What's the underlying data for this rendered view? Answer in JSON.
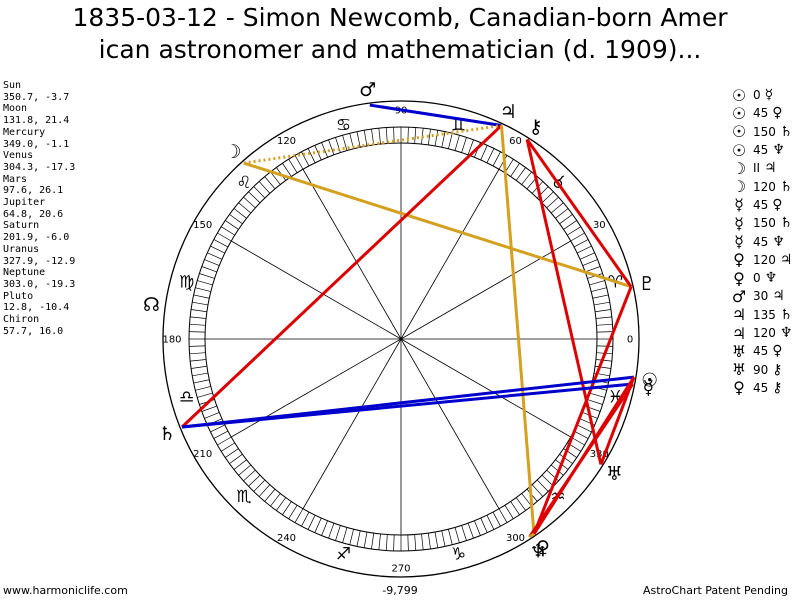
{
  "title": {
    "line1": "1835-03-12 - Simon Newcomb, Canadian-born Amer",
    "line2": "ican astronomer and mathematician (d. 1909)..."
  },
  "planet_list": [
    {
      "name": "Sun",
      "coords": "350.7, -3.7"
    },
    {
      "name": "Moon",
      "coords": "131.8, 21.4"
    },
    {
      "name": "Mercury",
      "coords": "349.0, -1.1"
    },
    {
      "name": "Venus",
      "coords": "304.3, -17.3"
    },
    {
      "name": "Mars",
      "coords": "97.6, 26.1"
    },
    {
      "name": "Jupiter",
      "coords": "64.8, 20.6"
    },
    {
      "name": "Saturn",
      "coords": "201.9, -6.0"
    },
    {
      "name": "Uranus",
      "coords": "327.9, -12.9"
    },
    {
      "name": "Neptune",
      "coords": "303.0, -19.3"
    },
    {
      "name": "Pluto",
      "coords": "12.8, -10.4"
    },
    {
      "name": "Chiron",
      "coords": "57.7, 16.0"
    }
  ],
  "aspects": [
    {
      "p1": "☉",
      "angle": "0",
      "p2": "☿"
    },
    {
      "p1": "☉",
      "angle": "45",
      "p2": "♀"
    },
    {
      "p1": "☉",
      "angle": "150",
      "p2": "♄"
    },
    {
      "p1": "☉",
      "angle": "45",
      "p2": "♆"
    },
    {
      "p1": "☽",
      "angle": "II",
      "p2": "♃"
    },
    {
      "p1": "☽",
      "angle": "120",
      "p2": "♄"
    },
    {
      "p1": "☿",
      "angle": "45",
      "p2": "♀"
    },
    {
      "p1": "☿",
      "angle": "150",
      "p2": "♄"
    },
    {
      "p1": "☿",
      "angle": "45",
      "p2": "♆"
    },
    {
      "p1": "♀",
      "angle": "120",
      "p2": "♃"
    },
    {
      "p1": "♀",
      "angle": "0",
      "p2": "♆"
    },
    {
      "p1": "♂",
      "angle": "30",
      "p2": "♃"
    },
    {
      "p1": "♃",
      "angle": "135",
      "p2": "♄"
    },
    {
      "p1": "♃",
      "angle": "120",
      "p2": "♆"
    },
    {
      "p1": "♅",
      "angle": "45",
      "p2": "♀"
    },
    {
      "p1": "♅",
      "angle": "90",
      "p2": "⚷"
    },
    {
      "p1": "♀",
      "angle": "45",
      "p2": "⚷"
    }
  ],
  "degree_labels": [
    "0",
    "30",
    "60",
    "90",
    "120",
    "150",
    "180",
    "210",
    "240",
    "270",
    "300",
    "330"
  ],
  "sign_glyphs": [
    "♈",
    "♉",
    "♊",
    "♋",
    "♌",
    "♍",
    "♎",
    "♏",
    "♐",
    "♑",
    "♒",
    "♓"
  ],
  "chart_planets": [
    {
      "glyph": "☉",
      "lon": 350.7
    },
    {
      "glyph": "☽",
      "lon": 131.8
    },
    {
      "glyph": "☿",
      "lon": 349.0
    },
    {
      "glyph": "♀",
      "lon": 304.3
    },
    {
      "glyph": "♂",
      "lon": 97.6
    },
    {
      "glyph": "♃",
      "lon": 64.8
    },
    {
      "glyph": "♄",
      "lon": 201.9
    },
    {
      "glyph": "♅",
      "lon": 327.9
    },
    {
      "glyph": "♆",
      "lon": 303.0
    },
    {
      "glyph": "♇",
      "lon": 12.8
    },
    {
      "glyph": "⚷",
      "lon": 57.7
    },
    {
      "glyph": "☊",
      "lon": 172.0
    }
  ],
  "aspect_lines": [
    {
      "a": 97.6,
      "b": 64.8,
      "color": "#0000cc",
      "style": "solid"
    },
    {
      "a": 131.8,
      "b": 64.8,
      "color": "#d4a020",
      "style": "dotted"
    },
    {
      "a": 131.8,
      "b": 12.8,
      "color": "#d4a020",
      "style": "solid"
    },
    {
      "a": 64.8,
      "b": 201.9,
      "color": "#dd0000",
      "style": "solid"
    },
    {
      "a": 64.8,
      "b": 304.3,
      "color": "#d4a020",
      "style": "solid"
    },
    {
      "a": 57.7,
      "b": 12.8,
      "color": "#dd0000",
      "style": "solid"
    },
    {
      "a": 57.7,
      "b": 327.9,
      "color": "#dd0000",
      "style": "solid"
    },
    {
      "a": 12.8,
      "b": 304.3,
      "color": "#dd0000",
      "style": "solid"
    },
    {
      "a": 350.7,
      "b": 201.9,
      "color": "#0000cc",
      "style": "solid"
    },
    {
      "a": 349.0,
      "b": 201.9,
      "color": "#0000cc",
      "style": "solid"
    },
    {
      "a": 350.7,
      "b": 304.3,
      "color": "#dd0000",
      "style": "solid"
    },
    {
      "a": 349.0,
      "b": 303.0,
      "color": "#dd0000",
      "style": "solid"
    },
    {
      "a": 350.7,
      "b": 327.9,
      "color": "#dd0000",
      "style": "solid"
    },
    {
      "a": 304.3,
      "b": 303.0,
      "color": "#d4a020",
      "style": "solid"
    }
  ],
  "footer": {
    "left": "www.harmoniclife.com",
    "center": "-9,799",
    "right": "AstroChart Patent Pending"
  }
}
